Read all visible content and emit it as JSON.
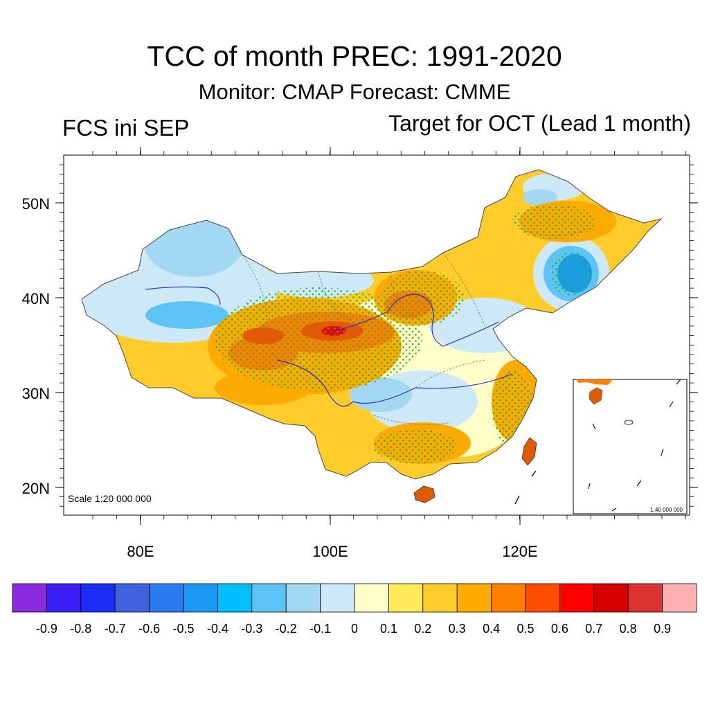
{
  "title": "TCC of month PREC: 1991-2020",
  "subtitle": "Monitor: CMAP   Forecast: CMME",
  "left_label": "FCS ini SEP",
  "right_label": "Target for OCT (Lead 1 month)",
  "scale_main": "Scale 1:20 000 000",
  "scale_inset": "1:40 000 000",
  "lat_labels": [
    "50N",
    "40N",
    "30N",
    "20N"
  ],
  "lon_labels": [
    "80E",
    "100E",
    "120E"
  ],
  "colorbar": {
    "ticks": [
      "-0.9",
      "-0.8",
      "-0.7",
      "-0.6",
      "-0.5",
      "-0.4",
      "-0.3",
      "-0.2",
      "-0.1",
      "0",
      "0.1",
      "0.2",
      "0.3",
      "0.4",
      "0.5",
      "0.6",
      "0.7",
      "0.8",
      "0.9"
    ],
    "colors": [
      "#8a2be2",
      "#3a1ff5",
      "#1b2ef5",
      "#3e62e0",
      "#2a7af0",
      "#1a9af5",
      "#00bfff",
      "#5ec4f5",
      "#a3d8f3",
      "#cde9f7",
      "#ffffc8",
      "#ffeb5a",
      "#ffcc2a",
      "#ffaa00",
      "#ff8000",
      "#ff4d00",
      "#ff0000",
      "#d80000",
      "#dc3232",
      "#ffb0b0"
    ]
  }
}
